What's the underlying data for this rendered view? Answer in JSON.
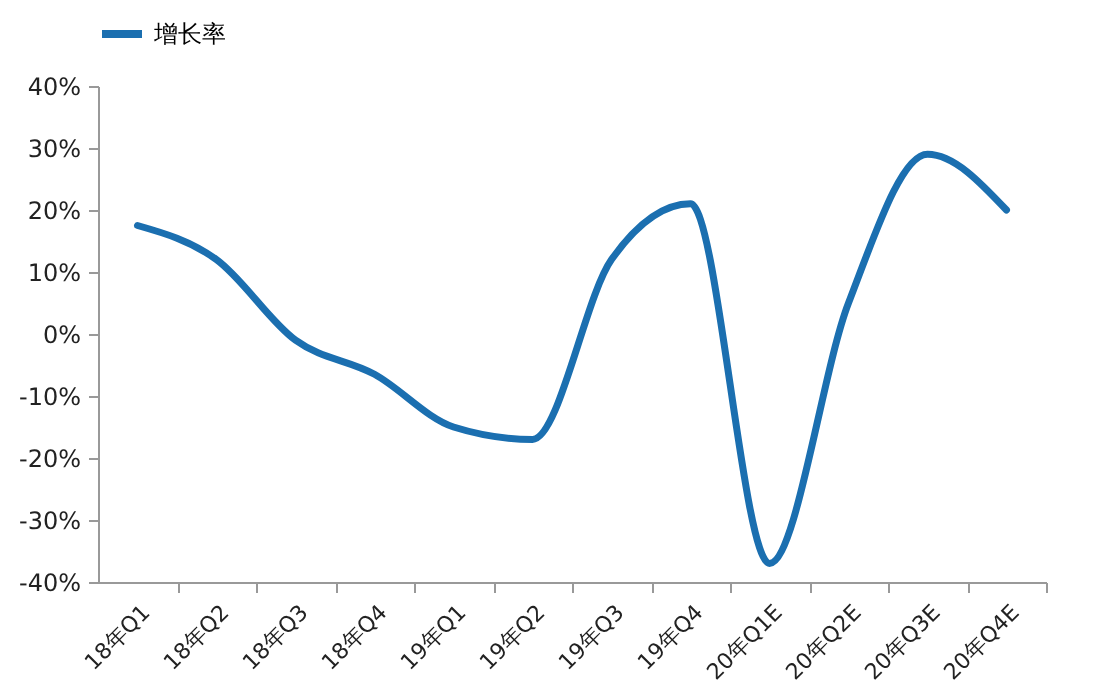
{
  "chart_data": {
    "type": "line",
    "categories": [
      "18年Q1",
      "18年Q2",
      "18年Q3",
      "18年Q4",
      "19年Q1",
      "19年Q2",
      "19年Q3",
      "19年Q4",
      "20年Q1E",
      "20年Q2E",
      "20年Q3E",
      "20年Q4E"
    ],
    "series": [
      {
        "name": "增长率",
        "color": "#1b6fb0",
        "values": [
          17.5,
          12,
          -1,
          -6.5,
          -15,
          -17,
          12,
          21,
          -37,
          5,
          29,
          20
        ]
      }
    ],
    "ylim": [
      -40,
      40
    ],
    "yticks": [
      {
        "value": -40,
        "label": "-40%"
      },
      {
        "value": -30,
        "label": "-30%"
      },
      {
        "value": -20,
        "label": "-20%"
      },
      {
        "value": -10,
        "label": "-10%"
      },
      {
        "value": 0,
        "label": "0%"
      },
      {
        "value": 10,
        "label": "10%"
      },
      {
        "value": 20,
        "label": "20%"
      },
      {
        "value": 30,
        "label": "30%"
      },
      {
        "value": 40,
        "label": "40%"
      }
    ],
    "legend": "top",
    "grid": false,
    "marker": "none",
    "line_style": "solid"
  }
}
